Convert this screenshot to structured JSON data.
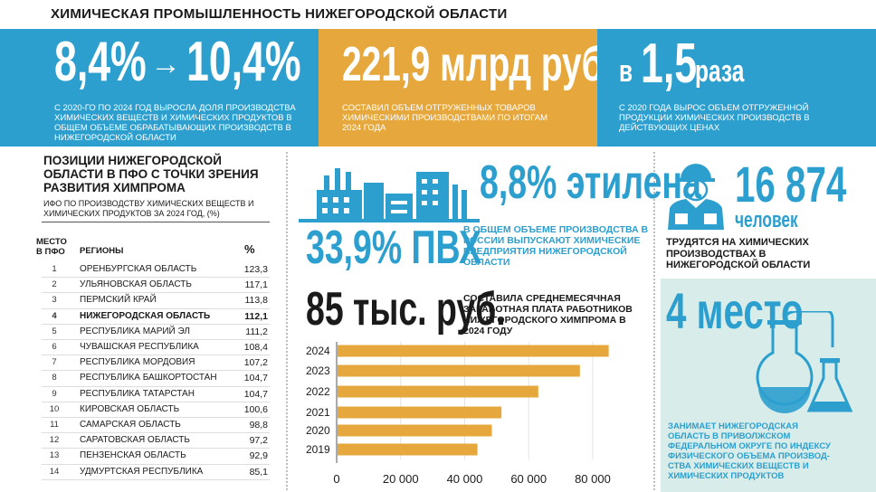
{
  "title": "ХИМИЧЕСКАЯ ПРОМЫШЛЕННОСТЬ НИЖЕГОРОДСКОЙ ОБЛАСТИ",
  "banners": [
    {
      "from": "8,4%",
      "arrow": "→",
      "to": "10,4%",
      "text": "С 2020-ГО ПО 2024 ГОД ВЫРОСЛА ДОЛЯ ПРОИЗВОДСТВА ХИМИЧЕСКИХ ВЕЩЕСТВ И ХИМИЧЕСКИХ ПРОДУКТОВ В ОБЩЕМ ОБЪЕМЕ ОБРАБАТЫВАЮЩИХ ПРОИЗВОДСТВ В НИЖЕГОРОДСКОЙ ОБЛАСТИ"
    },
    {
      "value": "221,9 млрд руб.",
      "text": "СОСТАВИЛ ОБЪЕМ ОТГРУЖЕННЫХ ТОВАРОВ ХИМИЧЕСКИМИ ПРОИЗВОДСТВАМИ ПО ИТОГАМ 2024 ГОДА"
    },
    {
      "prefix": "в",
      "value": "1,5",
      "suffix": "раза",
      "text": "С 2020 ГОДА ВЫРОС ОБЪЕМ ОТГРУЖЕННОЙ ПРОДУКЦИИ ХИМИЧЕСКИХ ПРОИЗВОДСТВ В ДЕЙСТВУЮЩИХ ЦЕНАХ"
    }
  ],
  "ranking": {
    "title": "ПОЗИЦИИ НИЖЕГОРОДСКОЙ ОБЛАСТИ В ПФО С ТОЧКИ ЗРЕНИЯ РАЗВИТИЯ ХИМПРОМА",
    "subtitle": "ИФО ПО ПРОИЗВОДСТВУ ХИМИЧЕСКИХ ВЕЩЕСТВ И ХИМИЧЕСКИХ ПРОДУКТОВ ЗА 2024 ГОД, (%)",
    "col_rank": "МЕСТО В ПФО",
    "col_region": "РЕГИОНЫ",
    "col_value": "%",
    "rows": [
      {
        "rank": "1",
        "region": "ОРЕНБУРГСКАЯ ОБЛАСТЬ",
        "value": "123,3"
      },
      {
        "rank": "2",
        "region": "УЛЬЯНОВСКАЯ ОБЛАСТЬ",
        "value": "117,1"
      },
      {
        "rank": "3",
        "region": "ПЕРМСКИЙ КРАЙ",
        "value": "113,8"
      },
      {
        "rank": "4",
        "region": "НИЖЕГОРОДСКАЯ ОБЛАСТЬ",
        "value": "112,1"
      },
      {
        "rank": "5",
        "region": "РЕСПУБЛИКА МАРИЙ ЭЛ",
        "value": "111,2"
      },
      {
        "rank": "6",
        "region": "ЧУВАШСКАЯ РЕСПУБЛИКА",
        "value": "108,4"
      },
      {
        "rank": "7",
        "region": "РЕСПУБЛИКА МОРДОВИЯ",
        "value": "107,2"
      },
      {
        "rank": "8",
        "region": "РЕСПУБЛИКА БАШКОРТОСТАН",
        "value": "104,7"
      },
      {
        "rank": "9",
        "region": "РЕСПУБЛИКА ТАТАРСТАН",
        "value": "104,7"
      },
      {
        "rank": "10",
        "region": "КИРОВСКАЯ ОБЛАСТЬ",
        "value": "100,6"
      },
      {
        "rank": "11",
        "region": "САМАРСКАЯ ОБЛАСТЬ",
        "value": "98,8"
      },
      {
        "rank": "12",
        "region": "САРАТОВСКАЯ ОБЛАСТЬ",
        "value": "97,2"
      },
      {
        "rank": "13",
        "region": "ПЕНЗЕНСКАЯ ОБЛАСТЬ",
        "value": "92,9"
      },
      {
        "rank": "14",
        "region": "УДМУРТСКАЯ РЕСПУБЛИКА",
        "value": "85,1"
      }
    ]
  },
  "middle": {
    "ethylene": "8,8% этилена",
    "pvc": "33,9% ПВХ",
    "share_text": "В ОБЩЕМ ОБЪЕМЕ ПРОИЗВОДСТВА В РОССИИ ВЫПУСКАЮТ ХИМИЧЕСКИЕ ПРЕДПРИЯТИЯ НИЖЕГОРОДСКОЙ ОБЛАСТИ",
    "salary": "85 тыс. руб.",
    "salary_text": "СОСТАВИЛА СРЕДНЕМЕСЯЧНАЯ ЗАРАБОТНАЯ ПЛАТА РАБОТНИКОВ НИЖЕГОРОДСКОГО ХИМПРОМА В 2024 ГОДУ"
  },
  "workers": {
    "value": "16 874",
    "unit": "человек",
    "text": "ТРУДЯТСЯ НА ХИМИЧЕСКИХ ПРОИЗВОДСТВАХ В НИЖЕГОРОДСКОЙ ОБЛАСТИ"
  },
  "place": {
    "value": "4 место",
    "text": "ЗАНИМАЕТ НИЖЕГОРОДСКАЯ ОБЛАСТЬ В ПРИВОЛЖСКОМ ФЕДЕРАЛЬНОМ ОКРУГЕ ПО ИНДЕКСУ ФИЗИЧЕСКОГО ОБЪЕМА ПРОИЗВОД-СТВА ХИМИЧЕСКИХ ВЕЩЕСТВ И ХИМИЧЕСКИХ ПРОДУКТОВ"
  },
  "colors": {
    "blue": "#2c9fcf",
    "orange": "#e6a83c",
    "bar": "#e6a83c",
    "mint": "#d8ede9"
  },
  "chart_data": {
    "type": "bar",
    "orientation": "horizontal",
    "categories": [
      "2024",
      "2023",
      "2022",
      "2021",
      "2020",
      "2019"
    ],
    "values": [
      85000,
      76000,
      63000,
      51500,
      48500,
      44000
    ],
    "xticks": [
      "0",
      "20 000",
      "40 000",
      "60 000",
      "80 000"
    ],
    "xlim": [
      0,
      95000
    ],
    "title": "",
    "xlabel": "",
    "ylabel": ""
  }
}
